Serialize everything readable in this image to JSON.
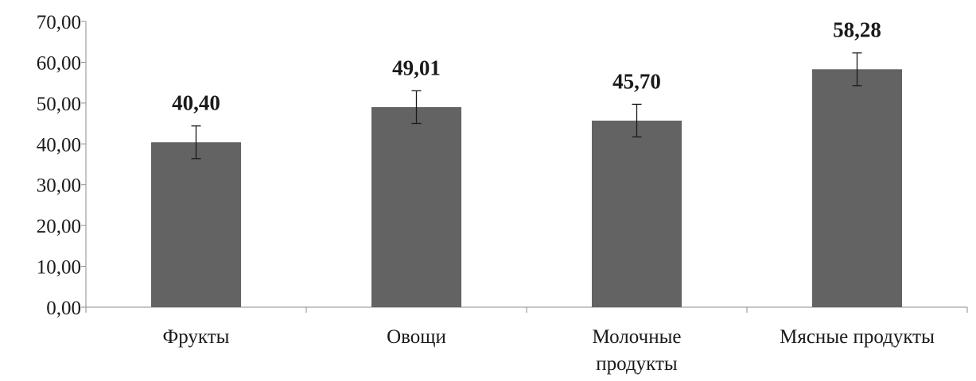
{
  "chart_data": {
    "type": "bar",
    "title": "",
    "xlabel": "",
    "ylabel": "",
    "categories": [
      [
        "Фрукты"
      ],
      [
        "Овощи"
      ],
      [
        "Молочные",
        "продукты"
      ],
      [
        "Мясные продукты"
      ]
    ],
    "values": [
      40.4,
      49.01,
      45.7,
      58.28
    ],
    "value_labels": [
      "40,40",
      "49,01",
      "45,70",
      "58,28"
    ],
    "error_bars": [
      4.0,
      4.0,
      4.0,
      4.0
    ],
    "ylim": [
      0,
      70
    ],
    "yticks": [
      0,
      10,
      20,
      30,
      40,
      50,
      60,
      70
    ],
    "ytick_labels": [
      "0,00",
      "10,00",
      "20,00",
      "30,00",
      "40,00",
      "50,00",
      "60,00",
      "70,00"
    ],
    "grid": false,
    "legend": "none",
    "colors": {
      "bar": "#636363",
      "axis": "#8c8c8c",
      "text": "#1a1a1a"
    }
  }
}
